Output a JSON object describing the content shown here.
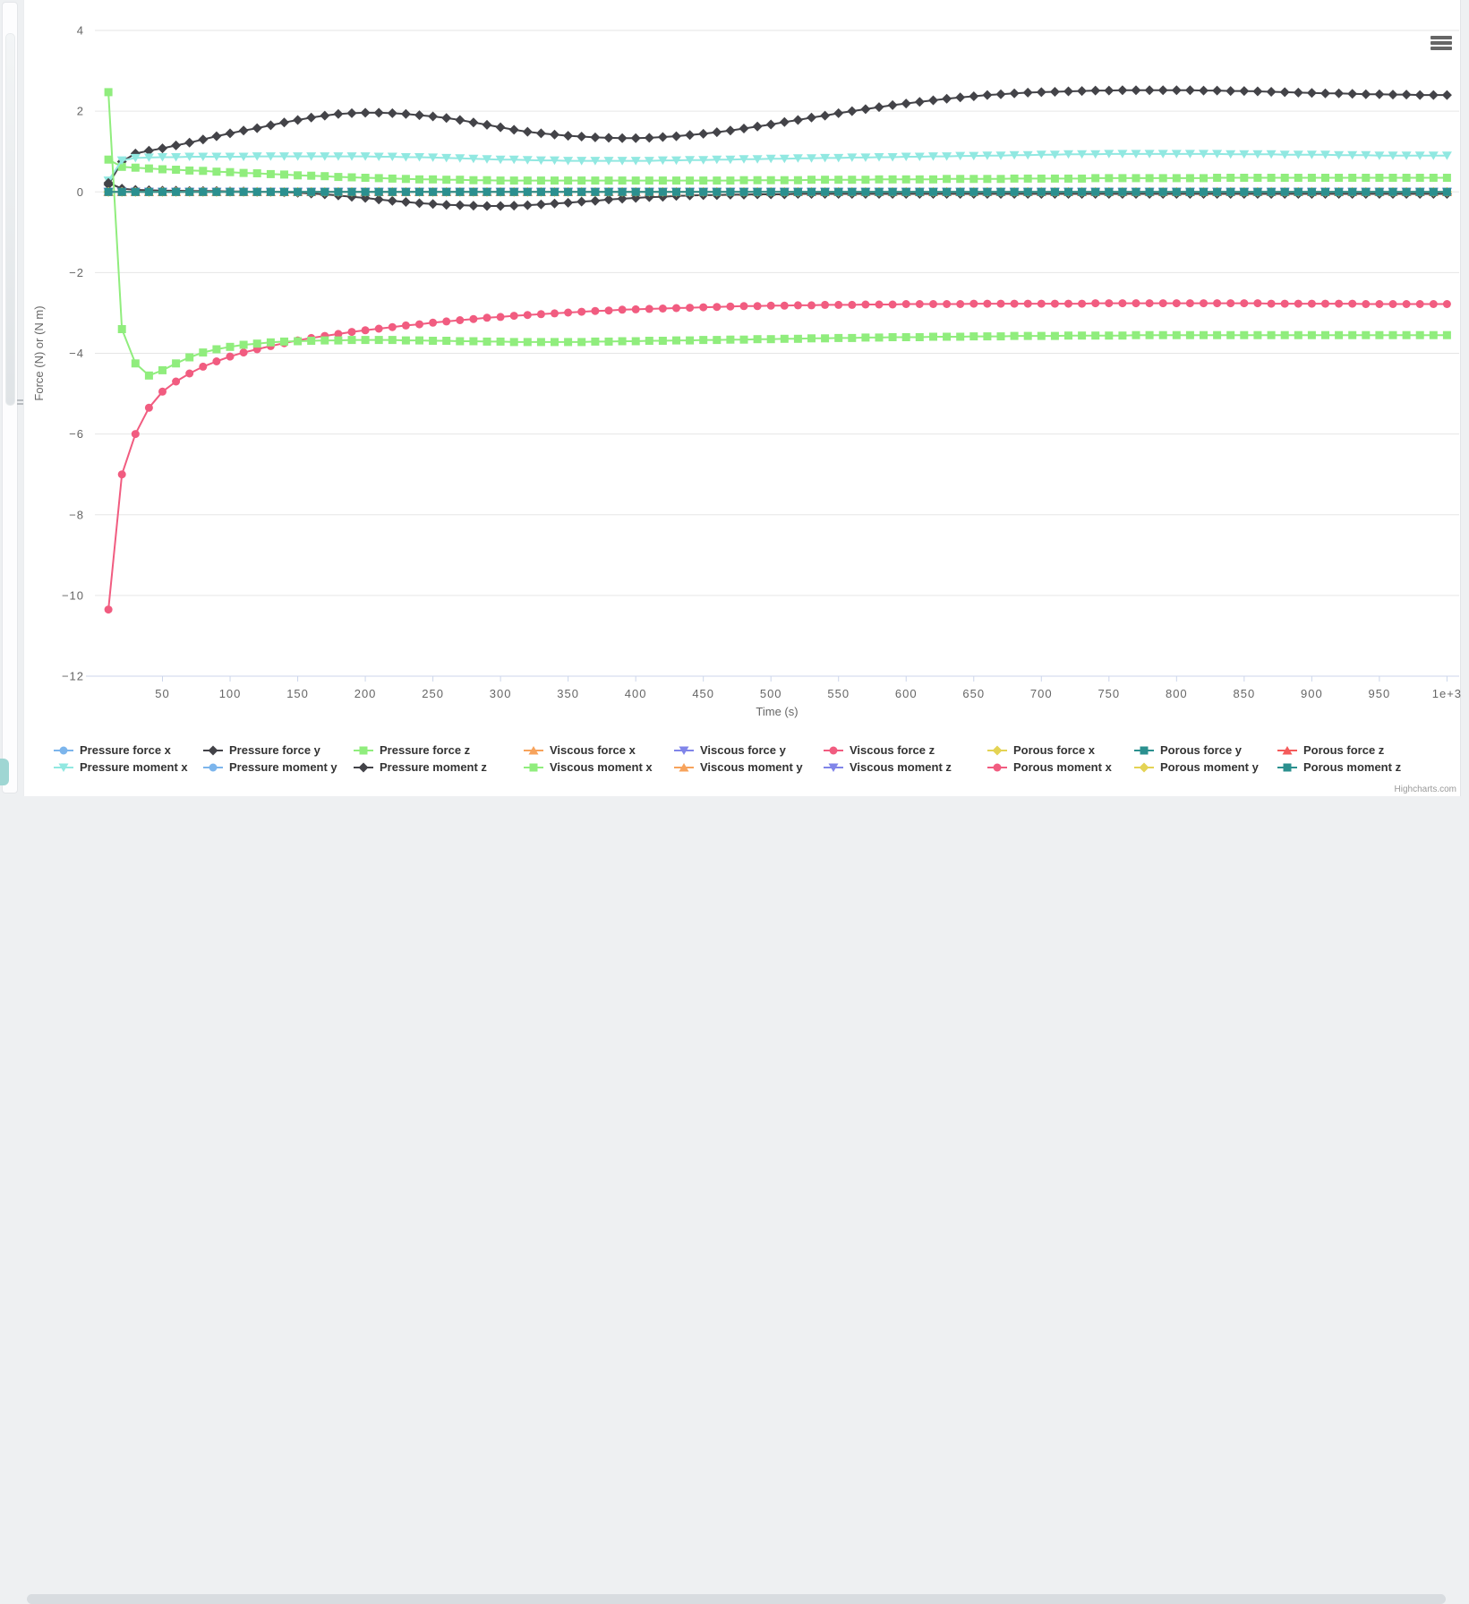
{
  "credit": "Highcharts.com",
  "controls": {
    "context_menu_icon": "hamburger-icon"
  },
  "chart_data": {
    "type": "line",
    "xlabel": "Time (s)",
    "ylabel": "Force (N) or (N m)",
    "xlim": [
      0,
      1009
    ],
    "ylim": [
      -12,
      4
    ],
    "x_ticks": [
      50,
      100,
      150,
      200,
      250,
      300,
      350,
      400,
      450,
      500,
      550,
      600,
      650,
      700,
      750,
      800,
      850,
      900,
      950,
      1000
    ],
    "x_tick_labels": [
      "50",
      "100",
      "150",
      "200",
      "250",
      "300",
      "350",
      "400",
      "450",
      "500",
      "550",
      "600",
      "650",
      "700",
      "750",
      "800",
      "850",
      "900",
      "950",
      "1e+3"
    ],
    "y_ticks": [
      -12,
      -10,
      -8,
      -6,
      -4,
      -2,
      0,
      2,
      4
    ],
    "grid": true,
    "grid_color": "#e6e6e6",
    "axis_line_color": "#ccd6eb",
    "axis_label_color": "#666666",
    "legend_position": "bottom",
    "legend_text_color": "#333333",
    "x_start": 10,
    "x_step": 10,
    "point_count": 100,
    "series": [
      {
        "name": "Pressure force x",
        "color": "#7cb5ec",
        "marker": "circle",
        "constant": 0
      },
      {
        "name": "Pressure force y",
        "color": "#434348",
        "marker": "diamond",
        "values": [
          0.18,
          0.75,
          0.95,
          1.02,
          1.08,
          1.15,
          1.22,
          1.3,
          1.38,
          1.45,
          1.52,
          1.58,
          1.65,
          1.72,
          1.78,
          1.84,
          1.89,
          1.93,
          1.95,
          1.96,
          1.96,
          1.95,
          1.93,
          1.9,
          1.87,
          1.83,
          1.78,
          1.72,
          1.66,
          1.6,
          1.54,
          1.49,
          1.45,
          1.42,
          1.39,
          1.37,
          1.35,
          1.34,
          1.33,
          1.33,
          1.34,
          1.36,
          1.38,
          1.41,
          1.44,
          1.48,
          1.52,
          1.57,
          1.62,
          1.67,
          1.73,
          1.78,
          1.84,
          1.89,
          1.95,
          2.0,
          2.05,
          2.1,
          2.15,
          2.19,
          2.23,
          2.27,
          2.31,
          2.34,
          2.37,
          2.4,
          2.42,
          2.44,
          2.46,
          2.47,
          2.48,
          2.49,
          2.5,
          2.51,
          2.51,
          2.52,
          2.52,
          2.52,
          2.52,
          2.52,
          2.52,
          2.51,
          2.51,
          2.5,
          2.5,
          2.49,
          2.48,
          2.47,
          2.46,
          2.45,
          2.44,
          2.44,
          2.43,
          2.42,
          2.42,
          2.41,
          2.41,
          2.4,
          2.4,
          2.4
        ]
      },
      {
        "name": "Pressure force z",
        "color": "#90ed7d",
        "marker": "square",
        "values": [
          0.8,
          0.62,
          0.6,
          0.58,
          0.56,
          0.55,
          0.53,
          0.52,
          0.5,
          0.49,
          0.47,
          0.46,
          0.44,
          0.43,
          0.41,
          0.4,
          0.39,
          0.37,
          0.36,
          0.35,
          0.34,
          0.33,
          0.32,
          0.31,
          0.31,
          0.3,
          0.3,
          0.29,
          0.29,
          0.28,
          0.28,
          0.28,
          0.28,
          0.28,
          0.28,
          0.28,
          0.28,
          0.28,
          0.28,
          0.28,
          0.28,
          0.28,
          0.28,
          0.28,
          0.28,
          0.28,
          0.28,
          0.29,
          0.29,
          0.29,
          0.29,
          0.29,
          0.3,
          0.3,
          0.3,
          0.3,
          0.3,
          0.31,
          0.31,
          0.31,
          0.31,
          0.31,
          0.32,
          0.32,
          0.32,
          0.32,
          0.32,
          0.33,
          0.33,
          0.33,
          0.33,
          0.33,
          0.33,
          0.34,
          0.34,
          0.34,
          0.34,
          0.34,
          0.34,
          0.34,
          0.34,
          0.34,
          0.35,
          0.35,
          0.35,
          0.35,
          0.35,
          0.35,
          0.35,
          0.35,
          0.35,
          0.35,
          0.35,
          0.35,
          0.35,
          0.35,
          0.35,
          0.35,
          0.35,
          0.35
        ]
      },
      {
        "name": "Viscous force x",
        "color": "#f7a35c",
        "marker": "triangle",
        "constant": 0
      },
      {
        "name": "Viscous force y",
        "color": "#8085e9",
        "marker": "triangle-down",
        "constant": 0
      },
      {
        "name": "Viscous force z",
        "color": "#f15c80",
        "marker": "circle",
        "values": [
          -10.35,
          -7.0,
          -6.0,
          -5.35,
          -4.95,
          -4.7,
          -4.5,
          -4.33,
          -4.2,
          -4.08,
          -3.98,
          -3.9,
          -3.82,
          -3.75,
          -3.68,
          -3.62,
          -3.57,
          -3.52,
          -3.47,
          -3.43,
          -3.39,
          -3.35,
          -3.31,
          -3.28,
          -3.24,
          -3.21,
          -3.18,
          -3.15,
          -3.12,
          -3.1,
          -3.07,
          -3.05,
          -3.03,
          -3.01,
          -2.99,
          -2.97,
          -2.95,
          -2.94,
          -2.92,
          -2.91,
          -2.9,
          -2.89,
          -2.88,
          -2.87,
          -2.86,
          -2.85,
          -2.84,
          -2.83,
          -2.83,
          -2.82,
          -2.82,
          -2.81,
          -2.81,
          -2.8,
          -2.8,
          -2.8,
          -2.79,
          -2.79,
          -2.79,
          -2.78,
          -2.78,
          -2.78,
          -2.78,
          -2.78,
          -2.77,
          -2.77,
          -2.77,
          -2.77,
          -2.77,
          -2.77,
          -2.77,
          -2.77,
          -2.77,
          -2.76,
          -2.76,
          -2.76,
          -2.76,
          -2.76,
          -2.76,
          -2.76,
          -2.76,
          -2.76,
          -2.76,
          -2.76,
          -2.76,
          -2.76,
          -2.77,
          -2.77,
          -2.77,
          -2.77,
          -2.77,
          -2.77,
          -2.77,
          -2.78,
          -2.78,
          -2.78,
          -2.78,
          -2.78,
          -2.78,
          -2.78
        ]
      },
      {
        "name": "Porous force x",
        "color": "#e4d354",
        "marker": "diamond",
        "constant": 0
      },
      {
        "name": "Porous force y",
        "color": "#2b908f",
        "marker": "square",
        "constant": 0
      },
      {
        "name": "Porous force z",
        "color": "#f45b5b",
        "marker": "triangle",
        "constant": 0
      },
      {
        "name": "Pressure moment x",
        "color": "#91e8e1",
        "marker": "triangle-down",
        "values": [
          0.28,
          0.78,
          0.84,
          0.85,
          0.86,
          0.86,
          0.87,
          0.87,
          0.87,
          0.87,
          0.87,
          0.88,
          0.88,
          0.88,
          0.88,
          0.88,
          0.88,
          0.88,
          0.88,
          0.88,
          0.87,
          0.87,
          0.86,
          0.86,
          0.85,
          0.84,
          0.83,
          0.82,
          0.81,
          0.8,
          0.8,
          0.79,
          0.78,
          0.78,
          0.77,
          0.77,
          0.77,
          0.77,
          0.77,
          0.77,
          0.77,
          0.78,
          0.78,
          0.79,
          0.79,
          0.8,
          0.8,
          0.81,
          0.81,
          0.82,
          0.82,
          0.83,
          0.83,
          0.84,
          0.84,
          0.85,
          0.85,
          0.86,
          0.86,
          0.87,
          0.87,
          0.88,
          0.88,
          0.89,
          0.89,
          0.9,
          0.9,
          0.91,
          0.91,
          0.92,
          0.92,
          0.93,
          0.93,
          0.93,
          0.94,
          0.94,
          0.94,
          0.94,
          0.94,
          0.94,
          0.94,
          0.94,
          0.94,
          0.93,
          0.93,
          0.93,
          0.93,
          0.92,
          0.92,
          0.92,
          0.92,
          0.91,
          0.91,
          0.91,
          0.9,
          0.9,
          0.9,
          0.9,
          0.9,
          0.9
        ]
      },
      {
        "name": "Pressure moment y",
        "color": "#7cb5ec",
        "marker": "circle",
        "constant": 0
      },
      {
        "name": "Pressure moment z",
        "color": "#434348",
        "marker": "diamond",
        "values": [
          0.22,
          0.08,
          0.05,
          0.04,
          0.03,
          0.03,
          0.02,
          0.02,
          0.02,
          0.01,
          0.01,
          0.0,
          0.0,
          -0.01,
          -0.02,
          -0.04,
          -0.06,
          -0.09,
          -0.12,
          -0.15,
          -0.19,
          -0.22,
          -0.25,
          -0.28,
          -0.3,
          -0.32,
          -0.33,
          -0.34,
          -0.35,
          -0.35,
          -0.34,
          -0.33,
          -0.31,
          -0.29,
          -0.27,
          -0.24,
          -0.22,
          -0.19,
          -0.17,
          -0.15,
          -0.13,
          -0.12,
          -0.1,
          -0.09,
          -0.08,
          -0.08,
          -0.07,
          -0.07,
          -0.06,
          -0.06,
          -0.06,
          -0.05,
          -0.05,
          -0.05,
          -0.05,
          -0.05,
          -0.05,
          -0.05,
          -0.05,
          -0.05,
          -0.05,
          -0.05,
          -0.05,
          -0.05,
          -0.05,
          -0.05,
          -0.05,
          -0.05,
          -0.05,
          -0.05,
          -0.05,
          -0.05,
          -0.05,
          -0.05,
          -0.05,
          -0.05,
          -0.05,
          -0.05,
          -0.05,
          -0.05,
          -0.05,
          -0.05,
          -0.05,
          -0.05,
          -0.05,
          -0.05,
          -0.05,
          -0.05,
          -0.05,
          -0.05,
          -0.05,
          -0.05,
          -0.05,
          -0.05,
          -0.05,
          -0.05,
          -0.05,
          -0.05,
          -0.05,
          -0.05
        ]
      },
      {
        "name": "Viscous moment x",
        "color": "#90ed7d",
        "marker": "square",
        "values": [
          2.47,
          -3.4,
          -4.25,
          -4.55,
          -4.42,
          -4.25,
          -4.1,
          -3.98,
          -3.9,
          -3.84,
          -3.79,
          -3.76,
          -3.73,
          -3.71,
          -3.7,
          -3.69,
          -3.68,
          -3.68,
          -3.67,
          -3.67,
          -3.67,
          -3.67,
          -3.68,
          -3.68,
          -3.69,
          -3.69,
          -3.7,
          -3.7,
          -3.71,
          -3.71,
          -3.72,
          -3.72,
          -3.72,
          -3.72,
          -3.72,
          -3.72,
          -3.71,
          -3.71,
          -3.7,
          -3.7,
          -3.69,
          -3.69,
          -3.68,
          -3.68,
          -3.67,
          -3.67,
          -3.66,
          -3.66,
          -3.65,
          -3.65,
          -3.64,
          -3.64,
          -3.63,
          -3.63,
          -3.62,
          -3.62,
          -3.61,
          -3.61,
          -3.6,
          -3.6,
          -3.6,
          -3.59,
          -3.59,
          -3.59,
          -3.58,
          -3.58,
          -3.58,
          -3.57,
          -3.57,
          -3.57,
          -3.57,
          -3.56,
          -3.56,
          -3.56,
          -3.56,
          -3.56,
          -3.55,
          -3.55,
          -3.55,
          -3.55,
          -3.55,
          -3.55,
          -3.55,
          -3.55,
          -3.55,
          -3.55,
          -3.55,
          -3.55,
          -3.55,
          -3.55,
          -3.55,
          -3.55,
          -3.55,
          -3.55,
          -3.55,
          -3.55,
          -3.55,
          -3.55,
          -3.55,
          -3.55
        ]
      },
      {
        "name": "Viscous moment y",
        "color": "#f7a35c",
        "marker": "triangle",
        "constant": 0
      },
      {
        "name": "Viscous moment z",
        "color": "#8085e9",
        "marker": "triangle-down",
        "constant": 0
      },
      {
        "name": "Porous moment x",
        "color": "#f15c80",
        "marker": "circle",
        "constant": 0
      },
      {
        "name": "Porous moment y",
        "color": "#e4d354",
        "marker": "diamond",
        "constant": 0
      },
      {
        "name": "Porous moment z",
        "color": "#2b908f",
        "marker": "square",
        "constant": 0
      }
    ]
  }
}
